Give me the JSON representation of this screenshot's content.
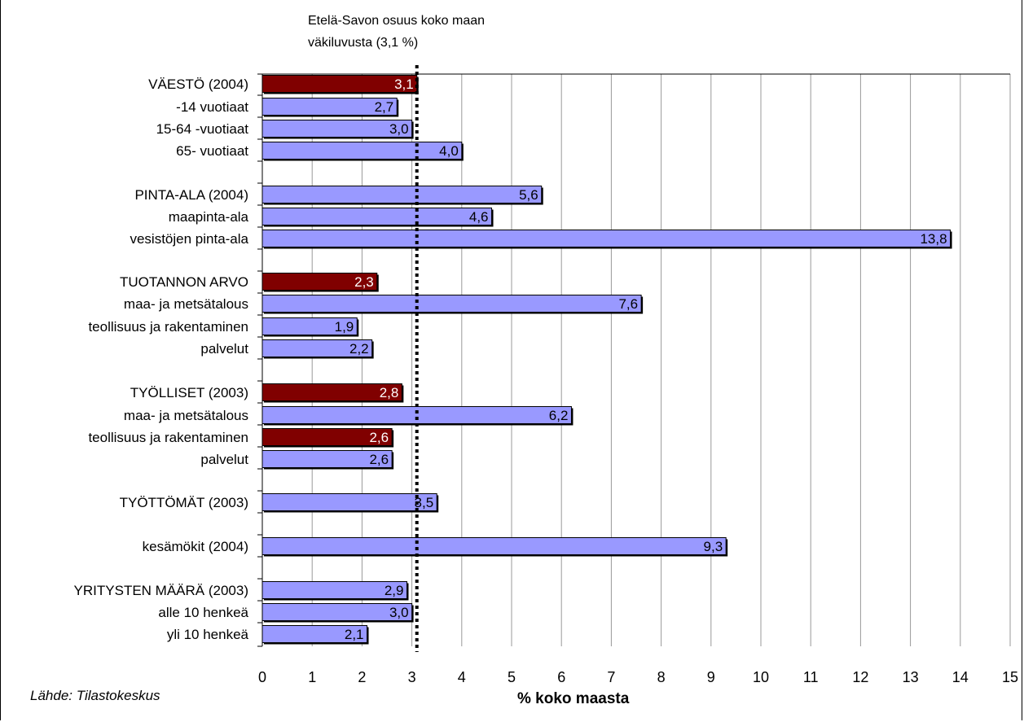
{
  "annotation": {
    "line1": "Etelä-Savon osuus koko maan",
    "line2": "väkiluvusta (3,1 %)"
  },
  "source": "Lähde: Tilastokeskus",
  "colors": {
    "highlight": "#800000",
    "bar": "#9999ff",
    "grid": "#999999",
    "reference_line": "#000000"
  },
  "chart_data": {
    "type": "bar",
    "orientation": "horizontal",
    "xlabel": "% koko maasta",
    "xlim": [
      0,
      15
    ],
    "xticks": [
      0,
      1,
      2,
      3,
      4,
      5,
      6,
      7,
      8,
      9,
      10,
      11,
      12,
      13,
      14,
      15
    ],
    "grid": true,
    "reference_line": {
      "value": 3.1,
      "style": "dotted"
    },
    "bars": [
      {
        "label": "VÄESTÖ (2004)",
        "value": 3.1,
        "value_label": "3,1",
        "highlight": true
      },
      {
        "label": "-14 vuotiaat",
        "value": 2.7,
        "value_label": "2,7",
        "highlight": false
      },
      {
        "label": "15-64 -vuotiaat",
        "value": 3.0,
        "value_label": "3,0",
        "highlight": false
      },
      {
        "label": "65- vuotiaat",
        "value": 4.0,
        "value_label": "4,0",
        "highlight": false
      },
      {
        "label": "PINTA-ALA (2004)",
        "value": 5.6,
        "value_label": "5,6",
        "highlight": false
      },
      {
        "label": "maapinta-ala",
        "value": 4.6,
        "value_label": "4,6",
        "highlight": false
      },
      {
        "label": "vesistöjen pinta-ala",
        "value": 13.8,
        "value_label": "13,8",
        "highlight": false
      },
      {
        "label": "TUOTANNON ARVO",
        "value": 2.3,
        "value_label": "2,3",
        "highlight": true
      },
      {
        "label": "maa- ja metsätalous",
        "value": 7.6,
        "value_label": "7,6",
        "highlight": false
      },
      {
        "label": "teollisuus ja rakentaminen",
        "value": 1.9,
        "value_label": "1,9",
        "highlight": false
      },
      {
        "label": "palvelut",
        "value": 2.2,
        "value_label": "2,2",
        "highlight": false
      },
      {
        "label": "TYÖLLISET (2003)",
        "value": 2.8,
        "value_label": "2,8",
        "highlight": true
      },
      {
        "label": "maa- ja metsätalous",
        "value": 6.2,
        "value_label": "6,2",
        "highlight": false
      },
      {
        "label": "teollisuus ja rakentaminen",
        "value": 2.6,
        "value_label": "2,6",
        "highlight": true
      },
      {
        "label": "palvelut",
        "value": 2.6,
        "value_label": "2,6",
        "highlight": false
      },
      {
        "label": "TYÖTTÖMÄT (2003)",
        "value": 3.5,
        "value_label": "3,5",
        "highlight": false
      },
      {
        "label": "kesämökit (2004)",
        "value": 9.3,
        "value_label": "9,3",
        "highlight": false
      },
      {
        "label": "YRITYSTEN MÄÄRÄ (2003)",
        "value": 2.9,
        "value_label": "2,9",
        "highlight": false
      },
      {
        "label": "alle 10 henkeä",
        "value": 3.0,
        "value_label": "3,0",
        "highlight": false
      },
      {
        "label": "yli 10 henkeä",
        "value": 2.1,
        "value_label": "2,1",
        "highlight": false
      }
    ]
  }
}
